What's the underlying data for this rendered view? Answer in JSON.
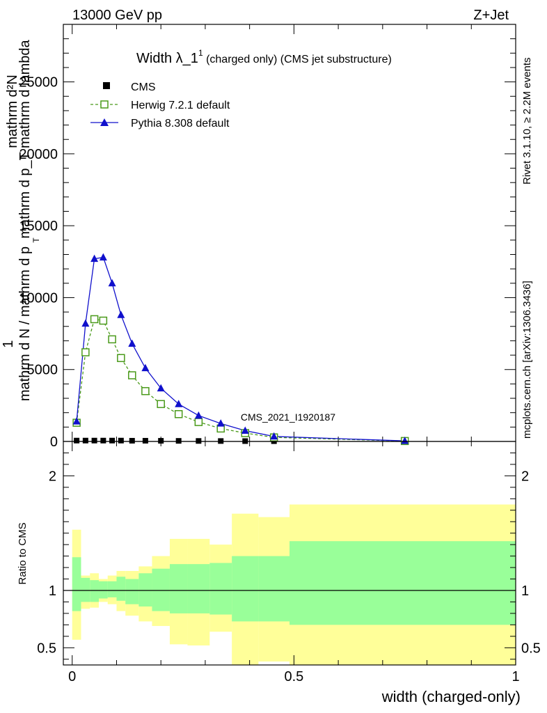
{
  "header": {
    "energy_label": "13000 GeV pp",
    "process_label": "Z+Jet"
  },
  "side_labels": {
    "rivet": "Rivet 3.1.10, ≥ 2.2M events",
    "mcplots": "mcplots.cern.ch [arXiv:1306.3436]"
  },
  "chart_data": [
    {
      "type": "line",
      "title_main": "Width λ_1",
      "title_sup": "1",
      "title_rest": " (charged only) (CMS jet substructure)",
      "ylabel_top": "1",
      "ylabel_bottom": "mathrm d N / mathrm d p",
      "ylabel_mid": "mathrm d p_T mathrm d lambda",
      "ylabel_upper": "mathrm d²N",
      "ylabel_sub": "T",
      "watermark": "CMS_2021_I1920187",
      "xlim": [
        -0.02,
        1.0
      ],
      "ylim": [
        0,
        29000
      ],
      "y_ticks": [
        0,
        5000,
        10000,
        15000,
        20000,
        25000
      ],
      "y_tick_labels": [
        "0",
        "5000",
        "10000",
        "15000",
        "20000",
        "25000"
      ],
      "legend_position": "top-left",
      "series": [
        {
          "name": "CMS",
          "color": "#000000",
          "marker": "square",
          "x": [
            0.01,
            0.03,
            0.05,
            0.07,
            0.09,
            0.11,
            0.135,
            0.165,
            0.2,
            0.24,
            0.285,
            0.335,
            0.39,
            0.455,
            0.75
          ],
          "y": [
            60,
            60,
            60,
            60,
            60,
            60,
            50,
            50,
            45,
            40,
            35,
            30,
            25,
            20,
            5
          ]
        },
        {
          "name": "Herwig 7.2.1 default",
          "color": "#4a9a1a",
          "marker": "open-square",
          "x": [
            0.01,
            0.03,
            0.05,
            0.07,
            0.09,
            0.11,
            0.135,
            0.165,
            0.2,
            0.24,
            0.285,
            0.335,
            0.39,
            0.455,
            0.75
          ],
          "y": [
            1300,
            6200,
            8500,
            8400,
            7100,
            5800,
            4600,
            3500,
            2600,
            1900,
            1350,
            900,
            580,
            280,
            30
          ]
        },
        {
          "name": "Pythia 8.308 default",
          "color": "#1010cc",
          "marker": "triangle",
          "x": [
            0.01,
            0.03,
            0.05,
            0.07,
            0.09,
            0.11,
            0.135,
            0.165,
            0.2,
            0.24,
            0.285,
            0.335,
            0.39,
            0.455,
            0.75
          ],
          "y": [
            1400,
            8200,
            12700,
            12800,
            11000,
            8800,
            6800,
            5100,
            3700,
            2600,
            1800,
            1250,
            750,
            350,
            40
          ]
        }
      ]
    },
    {
      "type": "area",
      "ylabel": "Ratio to CMS",
      "xlabel": "width (charged-only)",
      "xlim": [
        -0.02,
        1.0
      ],
      "ylim": [
        0.35,
        2.3
      ],
      "x_ticks": [
        0,
        0.5,
        1
      ],
      "x_tick_labels": [
        "0",
        "0.5",
        "1"
      ],
      "y_ticks": [
        0.5,
        1,
        2
      ],
      "y_tick_labels": [
        "0.5",
        "1",
        "2"
      ],
      "reference_line": 1,
      "band_colors": {
        "stat": "#99ff99",
        "total": "#ffff99"
      },
      "bins": [
        {
          "lo": 0.0,
          "hi": 0.02,
          "stat": [
            0.82,
            1.29
          ],
          "total": [
            0.57,
            1.53
          ]
        },
        {
          "lo": 0.02,
          "hi": 0.04,
          "stat": [
            0.9,
            1.11
          ],
          "total": [
            0.84,
            1.13
          ]
        },
        {
          "lo": 0.04,
          "hi": 0.06,
          "stat": [
            0.9,
            1.09
          ],
          "total": [
            0.85,
            1.15
          ]
        },
        {
          "lo": 0.06,
          "hi": 0.08,
          "stat": [
            0.93,
            1.08
          ],
          "total": [
            0.9,
            1.1
          ]
        },
        {
          "lo": 0.08,
          "hi": 0.1,
          "stat": [
            0.94,
            1.08
          ],
          "total": [
            0.88,
            1.13
          ]
        },
        {
          "lo": 0.1,
          "hi": 0.12,
          "stat": [
            0.91,
            1.12
          ],
          "total": [
            0.82,
            1.17
          ]
        },
        {
          "lo": 0.12,
          "hi": 0.15,
          "stat": [
            0.88,
            1.1
          ],
          "total": [
            0.78,
            1.17
          ]
        },
        {
          "lo": 0.15,
          "hi": 0.18,
          "stat": [
            0.86,
            1.15
          ],
          "total": [
            0.73,
            1.21
          ]
        },
        {
          "lo": 0.18,
          "hi": 0.22,
          "stat": [
            0.82,
            1.19
          ],
          "total": [
            0.69,
            1.3
          ]
        },
        {
          "lo": 0.22,
          "hi": 0.26,
          "stat": [
            0.8,
            1.23
          ],
          "total": [
            0.53,
            1.45
          ]
        },
        {
          "lo": 0.26,
          "hi": 0.31,
          "stat": [
            0.8,
            1.23
          ],
          "total": [
            0.52,
            1.45
          ]
        },
        {
          "lo": 0.31,
          "hi": 0.36,
          "stat": [
            0.79,
            1.24
          ],
          "total": [
            0.64,
            1.4
          ]
        },
        {
          "lo": 0.36,
          "hi": 0.42,
          "stat": [
            0.73,
            1.3
          ],
          "total": [
            0.35,
            1.67
          ]
        },
        {
          "lo": 0.42,
          "hi": 0.49,
          "stat": [
            0.73,
            1.3
          ],
          "total": [
            0.38,
            1.64
          ]
        },
        {
          "lo": 0.49,
          "hi": 1.0,
          "stat": [
            0.7,
            1.43
          ],
          "total": [
            0.35,
            1.75
          ]
        }
      ]
    }
  ]
}
